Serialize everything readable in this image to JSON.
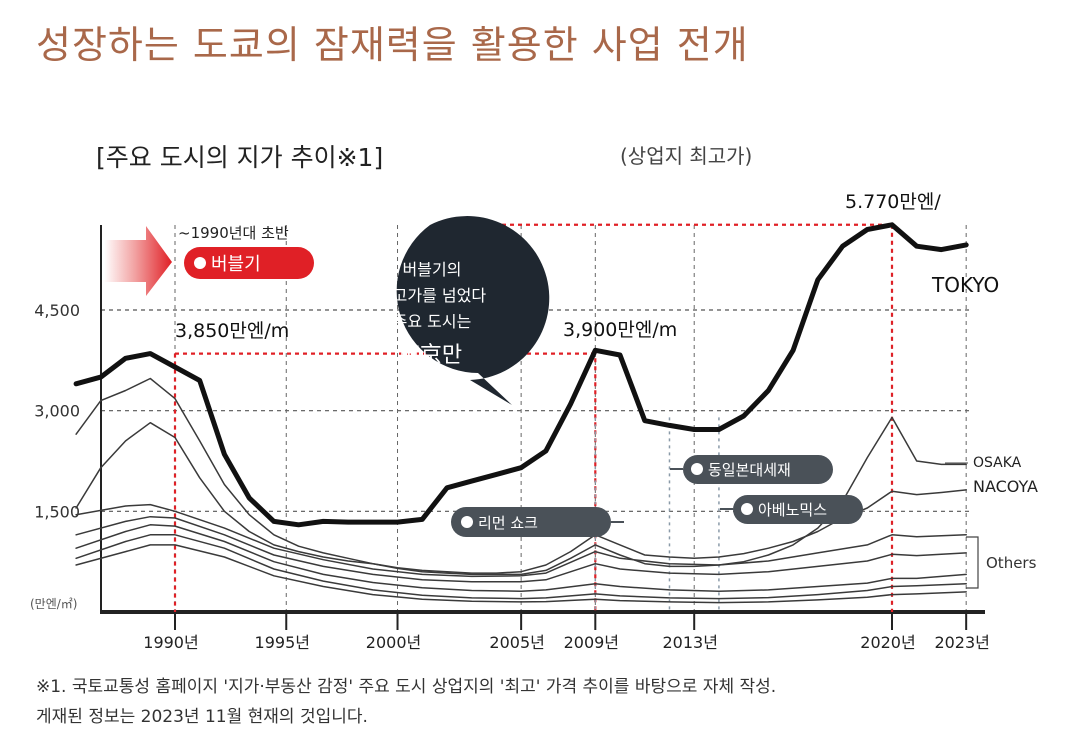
{
  "page_title": "성장하는 도쿄의 잠재력을 활용한 사업 전개",
  "footnote": [
    "※1. 국토교통성 홈페이지 '지가·부동산 감정' 주요 도시 상업지의 '최고' 가격 추이를 바탕으로 자체 작성.",
    "게재된 정보는 2023년 11월 현재의 것입니다."
  ],
  "colors": {
    "heading": "#a9684a",
    "accent_red": "#e02026",
    "callout_dark": "#1f2730",
    "pill_grey": "#4a5158",
    "tokyo_line": "#111111",
    "other_lines": "#3a3a3a"
  },
  "chart_data": {
    "type": "line",
    "title": "[주요 도시의 지가 추이※1]",
    "subtitle": "(상업지 최고가)",
    "y_unit_label": "(만엔/㎡)",
    "y_ticks": [
      {
        "value": 1500,
        "label": "1,500"
      },
      {
        "value": 3000,
        "label": "3,000"
      },
      {
        "value": 4500,
        "label": "4,500"
      }
    ],
    "ylim": [
      0,
      6000
    ],
    "xlim": [
      1987,
      2024
    ],
    "x_ticks": [
      {
        "value": 1991,
        "label": "1990년"
      },
      {
        "value": 1995.5,
        "label": "1995년"
      },
      {
        "value": 2000,
        "label": "2000년"
      },
      {
        "value": 2005,
        "label": "2005년"
      },
      {
        "value": 2008,
        "label": "2009년"
      },
      {
        "value": 2012,
        "label": "2013년"
      },
      {
        "value": 2020,
        "label": "2020년"
      },
      {
        "value": 2023,
        "label": "2023년"
      }
    ],
    "grid": true,
    "series": [
      {
        "name": "TOKYO",
        "role": "tokyo",
        "x": [
          1987,
          1988,
          1989,
          1990,
          1991,
          1992,
          1993,
          1994,
          1995,
          1996,
          1997,
          1998,
          1999,
          2000,
          2001,
          2002,
          2003,
          2004,
          2005,
          2006,
          2007,
          2008,
          2009,
          2010,
          2011,
          2012,
          2013,
          2014,
          2015,
          2016,
          2017,
          2018,
          2019,
          2020,
          2021,
          2022,
          2023
        ],
        "values": [
          3400,
          3500,
          3780,
          3850,
          3650,
          3450,
          2350,
          1700,
          1350,
          1300,
          1350,
          1340,
          1340,
          1340,
          1380,
          1850,
          1950,
          2050,
          2150,
          2400,
          3100,
          3900,
          3830,
          2850,
          2780,
          2720,
          2720,
          2920,
          3300,
          3900,
          4950,
          5450,
          5700,
          5770,
          5450,
          5400,
          5470
        ]
      },
      {
        "name": "OSAKA",
        "role": "osaka",
        "x": [
          1987,
          1988,
          1989,
          1990,
          1991,
          1992,
          1993,
          1994,
          1995,
          1996,
          1997,
          1998,
          1999,
          2000,
          2001,
          2002,
          2003,
          2004,
          2005,
          2006,
          2007,
          2008,
          2009,
          2010,
          2011,
          2012,
          2013,
          2014,
          2015,
          2016,
          2017,
          2018,
          2019,
          2020,
          2021,
          2022,
          2023
        ],
        "values": [
          2650,
          3150,
          3300,
          3480,
          3180,
          2550,
          1900,
          1450,
          1150,
          980,
          880,
          800,
          720,
          650,
          600,
          580,
          560,
          560,
          560,
          620,
          800,
          1000,
          850,
          720,
          680,
          680,
          700,
          750,
          850,
          1000,
          1250,
          1650,
          2300,
          2900,
          2250,
          2200,
          2200
        ]
      },
      {
        "name": "NACOYA",
        "role": "nagoya",
        "x": [
          1987,
          1988,
          1989,
          1990,
          1991,
          1992,
          1993,
          1994,
          1995,
          1996,
          1997,
          1998,
          1999,
          2000,
          2001,
          2002,
          2003,
          2004,
          2005,
          2006,
          2007,
          2008,
          2009,
          2010,
          2011,
          2012,
          2013,
          2014,
          2015,
          2016,
          2017,
          2018,
          2019,
          2020,
          2021,
          2022,
          2023
        ],
        "values": [
          1550,
          2150,
          2550,
          2820,
          2600,
          2000,
          1500,
          1200,
          1000,
          900,
          820,
          760,
          720,
          660,
          620,
          600,
          580,
          580,
          600,
          700,
          900,
          1150,
          1000,
          850,
          820,
          800,
          820,
          870,
          950,
          1050,
          1200,
          1400,
          1550,
          1800,
          1750,
          1780,
          1820
        ]
      },
      {
        "name": "",
        "role": "other",
        "x": [
          1987,
          1989,
          1990,
          1991,
          1993,
          1995,
          1997,
          1999,
          2001,
          2003,
          2005,
          2006,
          2008,
          2009,
          2011,
          2013,
          2015,
          2017,
          2019,
          2020,
          2021,
          2023
        ],
        "values": [
          1450,
          1580,
          1600,
          1500,
          1250,
          950,
          780,
          640,
          560,
          530,
          540,
          580,
          900,
          800,
          720,
          700,
          760,
          880,
          1000,
          1150,
          1120,
          1150
        ]
      },
      {
        "name": "",
        "role": "other",
        "x": [
          1987,
          1989,
          1990,
          1991,
          1993,
          1995,
          1997,
          1999,
          2001,
          2003,
          2005,
          2006,
          2008,
          2009,
          2011,
          2013,
          2015,
          2017,
          2019,
          2020,
          2021,
          2023
        ],
        "values": [
          1150,
          1350,
          1420,
          1400,
          1150,
          850,
          680,
          560,
          480,
          450,
          450,
          480,
          720,
          640,
          580,
          560,
          600,
          680,
          760,
          860,
          840,
          880
        ]
      },
      {
        "name": "",
        "role": "other",
        "x": [
          1987,
          1989,
          1990,
          1991,
          1993,
          1995,
          1997,
          1999,
          2001,
          2003,
          2005,
          2006,
          2008,
          2009,
          2011,
          2013,
          2015,
          2017,
          2019,
          2020,
          2021,
          2023
        ],
        "values": [
          950,
          1200,
          1300,
          1280,
          1050,
          750,
          560,
          440,
          360,
          320,
          310,
          330,
          420,
          380,
          330,
          310,
          330,
          380,
          430,
          500,
          500,
          560
        ]
      },
      {
        "name": "",
        "role": "other",
        "x": [
          1987,
          1989,
          1990,
          1991,
          1993,
          1995,
          1997,
          1999,
          2001,
          2003,
          2005,
          2006,
          2008,
          2009,
          2011,
          2013,
          2015,
          2017,
          2019,
          2020,
          2021,
          2023
        ],
        "values": [
          800,
          1050,
          1150,
          1150,
          950,
          640,
          460,
          330,
          250,
          210,
          200,
          210,
          270,
          240,
          210,
          200,
          215,
          260,
          320,
          380,
          390,
          420
        ]
      },
      {
        "name": "",
        "role": "other",
        "x": [
          1987,
          1989,
          1990,
          1991,
          1993,
          1995,
          1997,
          1999,
          2001,
          2003,
          2005,
          2006,
          2008,
          2009,
          2011,
          2013,
          2015,
          2017,
          2019,
          2020,
          2021,
          2023
        ],
        "values": [
          700,
          900,
          1000,
          1000,
          820,
          540,
          380,
          260,
          190,
          160,
          150,
          155,
          190,
          170,
          150,
          140,
          150,
          180,
          220,
          260,
          270,
          300
        ]
      }
    ],
    "others_label": "Others",
    "peak_labels": [
      {
        "x": 1991,
        "y": 3850,
        "text": "3,850만엔/m",
        "pos": "above-right"
      },
      {
        "x": 2008,
        "y": 3900,
        "text": "3,900만엔/m",
        "pos": "above-left"
      },
      {
        "x": 2020,
        "y": 5770,
        "text": "5.770만엔/",
        "pos": "above-left"
      }
    ],
    "ref_lines": [
      {
        "year": 1991,
        "value": 3850
      },
      {
        "year": 2008,
        "value": 3900
      },
      {
        "year": 2020,
        "value": 5770
      }
    ],
    "annotations": {
      "bubble_era_caption": "~1990년대 초반",
      "bubble_pill": "버블기",
      "callout_lines": [
        "버블기의",
        "최고가를 넘었다",
        "주요 도시는"
      ],
      "callout_emphasis": "東京만",
      "events": [
        {
          "label": "리먼 쇼크",
          "year": 2008
        },
        {
          "label": "동일본대세재",
          "year": 2011
        },
        {
          "label": "아베노믹스",
          "year": 2013
        }
      ]
    }
  }
}
